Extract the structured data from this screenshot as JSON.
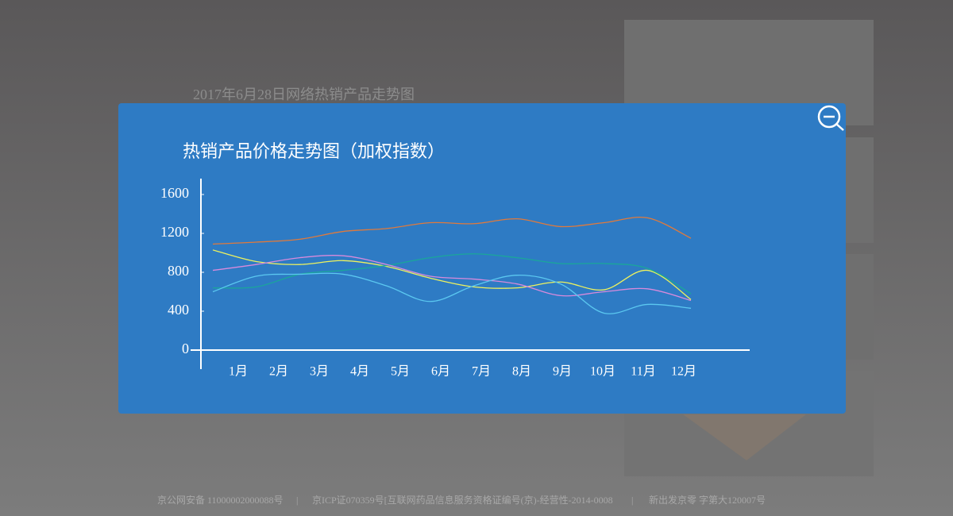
{
  "page": {
    "background_title": "2017年6月28日网络热销产品走势图",
    "footer": [
      "京公网安备 11000002000088号",
      "京ICP证070359号[互联网药品信息服务资格证编号(京)-经营性-2014-0008",
      "新出发京零 字第大120007号"
    ]
  },
  "chart_data": {
    "type": "line",
    "title": "热销产品价格走势图（加权指数）",
    "categories": [
      "1月",
      "2月",
      "3月",
      "4月",
      "5月",
      "6月",
      "7月",
      "8月",
      "9月",
      "10月",
      "11月",
      "12月"
    ],
    "ylim": [
      0,
      1600
    ],
    "yticks": [
      0,
      400,
      800,
      1200,
      1600
    ],
    "series": [
      {
        "color": "#e07a3c",
        "values": [
          1090,
          1110,
          1140,
          1220,
          1250,
          1310,
          1300,
          1350,
          1270,
          1310,
          1360,
          1150
        ]
      },
      {
        "color": "#eef25e",
        "values": [
          1030,
          910,
          880,
          920,
          860,
          740,
          650,
          640,
          700,
          620,
          820,
          520
        ]
      },
      {
        "color": "#1aa79a",
        "values": [
          640,
          650,
          780,
          820,
          870,
          950,
          990,
          950,
          890,
          890,
          840,
          580
        ]
      },
      {
        "color": "#d88adc",
        "values": [
          820,
          880,
          950,
          970,
          880,
          760,
          730,
          680,
          560,
          600,
          630,
          510
        ]
      },
      {
        "color": "#5bc8f0",
        "values": [
          600,
          760,
          780,
          780,
          660,
          500,
          660,
          770,
          680,
          380,
          470,
          430
        ]
      }
    ]
  }
}
